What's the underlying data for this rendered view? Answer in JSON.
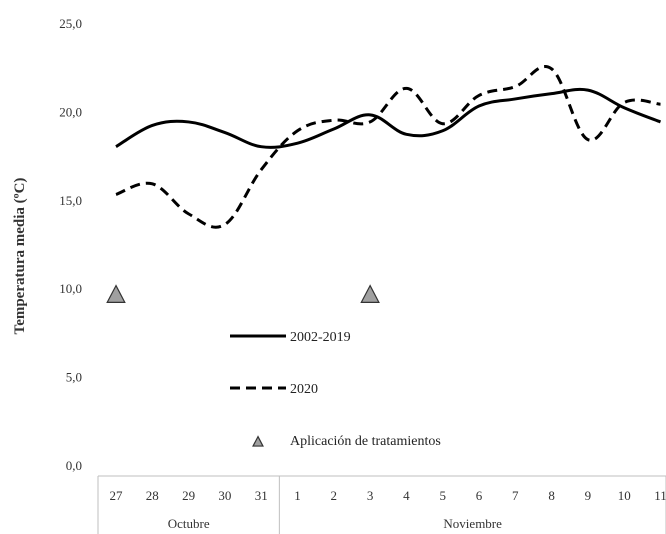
{
  "chart_data": {
    "type": "line",
    "title": "",
    "ylabel": "Temperatura media (ºC)",
    "xlabel": "",
    "ylim": [
      0,
      25
    ],
    "y_ticks": [
      "0,0",
      "5,0",
      "10,0",
      "15,0",
      "20,0",
      "25,0"
    ],
    "y_tick_values": [
      0,
      5,
      10,
      15,
      20,
      25
    ],
    "categories": [
      "27",
      "28",
      "29",
      "30",
      "31",
      "1",
      "2",
      "3",
      "4",
      "5",
      "6",
      "7",
      "8",
      "9",
      "10",
      "11"
    ],
    "groups": [
      {
        "label": "Octubre",
        "count": 5
      },
      {
        "label": "Noviembre",
        "count": 11
      }
    ],
    "series": [
      {
        "name": "2002-2019",
        "style": "solid",
        "values": [
          18.4,
          19.6,
          19.8,
          19.2,
          18.4,
          18.6,
          19.4,
          20.2,
          19.1,
          19.3,
          20.7,
          21.1,
          21.4,
          21.6,
          20.6,
          19.8
        ]
      },
      {
        "name": "2020",
        "style": "dashed",
        "values": [
          15.7,
          16.3,
          14.6,
          14.0,
          17.1,
          19.3,
          19.9,
          19.8,
          21.7,
          19.7,
          21.3,
          21.8,
          22.8,
          18.8,
          20.9,
          20.8
        ]
      }
    ],
    "markers": {
      "name": "Aplicación de tratamientos",
      "shape": "triangle",
      "color": "#a0a0a0",
      "points": [
        {
          "category": "27",
          "y": 10.0
        },
        {
          "category": "3",
          "y": 10.0
        }
      ]
    },
    "legend": {
      "placement": "inside-left-bottom",
      "items": [
        "2002-2019",
        "2020",
        "Aplicación de tratamientos"
      ]
    },
    "grid": false,
    "colors": {
      "line": "#000000",
      "marker_fill": "#a0a0a0",
      "axis": "#bfbfbf"
    }
  }
}
